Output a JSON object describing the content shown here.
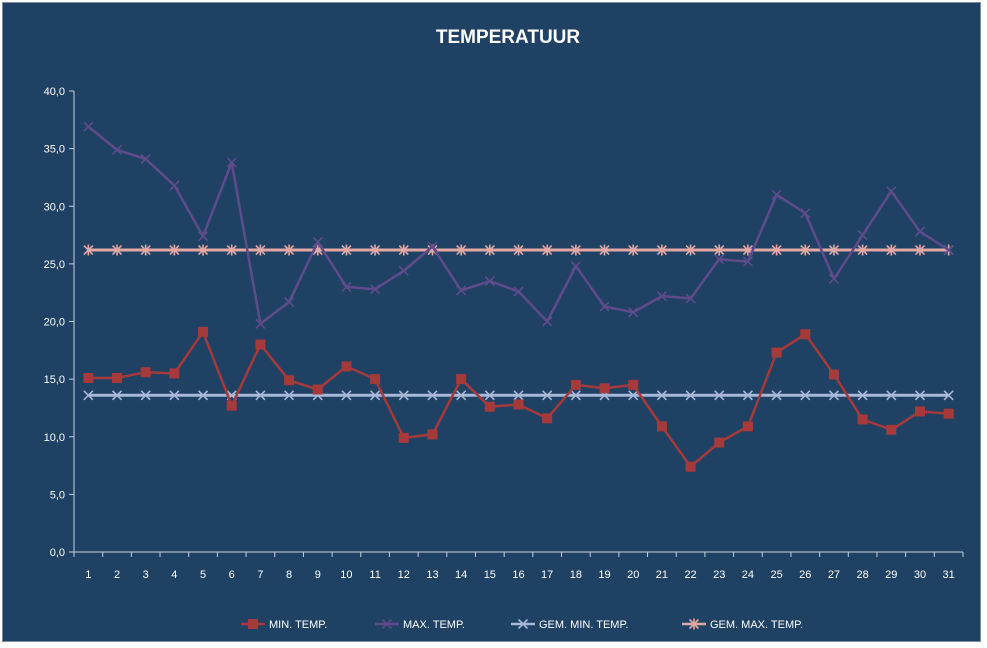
{
  "chart_data": {
    "type": "line",
    "title": "TEMPERATUUR",
    "xlabel": "",
    "ylabel": "",
    "x": [
      1,
      2,
      3,
      4,
      5,
      6,
      7,
      8,
      9,
      10,
      11,
      12,
      13,
      14,
      15,
      16,
      17,
      18,
      19,
      20,
      21,
      22,
      23,
      24,
      25,
      26,
      27,
      28,
      29,
      30,
      31
    ],
    "ylim": [
      0,
      40
    ],
    "y_ticks": [
      "0,0",
      "5,0",
      "10,0",
      "15,0",
      "20,0",
      "25,0",
      "30,0",
      "35,0",
      "40,0"
    ],
    "grid": false,
    "legend_position": "bottom",
    "series": [
      {
        "name": "MIN. TEMP.",
        "color": "#A63A3A",
        "marker": "square",
        "values": [
          15.1,
          15.1,
          15.6,
          15.5,
          19.1,
          12.7,
          18.0,
          14.9,
          14.1,
          16.1,
          15.0,
          9.9,
          10.2,
          15.0,
          12.6,
          12.8,
          11.6,
          14.5,
          14.2,
          14.5,
          10.9,
          7.4,
          9.5,
          10.9,
          17.3,
          18.9,
          15.4,
          11.5,
          10.6,
          12.2,
          12.0
        ]
      },
      {
        "name": "MAX. TEMP.",
        "color": "#5F4B8B",
        "marker": "x",
        "values": [
          36.9,
          34.9,
          34.1,
          31.8,
          27.4,
          33.8,
          19.8,
          21.7,
          26.9,
          23.0,
          22.8,
          24.4,
          26.5,
          22.7,
          23.5,
          22.6,
          20.0,
          24.8,
          21.3,
          20.8,
          22.2,
          22.0,
          25.4,
          25.2,
          31.0,
          29.4,
          23.7,
          27.5,
          31.3,
          27.8,
          26.2
        ]
      },
      {
        "name": "GEM. MIN. TEMP.",
        "color": "#A8B8D8",
        "marker": "x",
        "values": [
          13.6,
          13.6,
          13.6,
          13.6,
          13.6,
          13.6,
          13.6,
          13.6,
          13.6,
          13.6,
          13.6,
          13.6,
          13.6,
          13.6,
          13.6,
          13.6,
          13.6,
          13.6,
          13.6,
          13.6,
          13.6,
          13.6,
          13.6,
          13.6,
          13.6,
          13.6,
          13.6,
          13.6,
          13.6,
          13.6,
          13.6
        ]
      },
      {
        "name": "GEM. MAX. TEMP.",
        "color": "#E3A8A3",
        "marker": "star",
        "values": [
          26.2,
          26.2,
          26.2,
          26.2,
          26.2,
          26.2,
          26.2,
          26.2,
          26.2,
          26.2,
          26.2,
          26.2,
          26.2,
          26.2,
          26.2,
          26.2,
          26.2,
          26.2,
          26.2,
          26.2,
          26.2,
          26.2,
          26.2,
          26.2,
          26.2,
          26.2,
          26.2,
          26.2,
          26.2,
          26.2,
          26.2
        ]
      }
    ]
  }
}
